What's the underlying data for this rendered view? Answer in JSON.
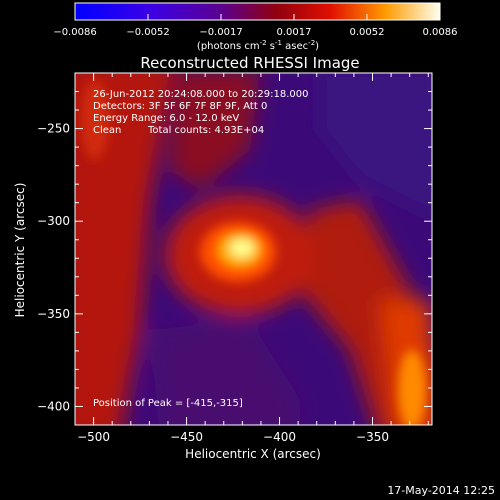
{
  "chart_data": {
    "type": "heatmap",
    "title": "Reconstructed RHESSI Image",
    "xlabel": "Heliocentric X (arcsec)",
    "ylabel": "Heliocentric Y (arcsec)",
    "xlim": [
      -510,
      -318
    ],
    "ylim": [
      -410,
      -220
    ],
    "x_ticks": [
      -500,
      -450,
      -400,
      -350
    ],
    "y_ticks": [
      -250,
      -300,
      -350,
      -400
    ],
    "colorbar": {
      "range": [
        -0.0086,
        0.0086
      ],
      "ticks": [
        "-0.0086",
        "-0.0052",
        "-0.0017",
        "0.0017",
        "0.0052",
        "0.0086"
      ],
      "unit_text": "(photons cm",
      "unit_sup1": "-2",
      "unit_mid1": " s",
      "unit_sup2": "-1",
      "unit_mid2": " asec",
      "unit_sup3": "-2",
      "unit_end": ")"
    },
    "annotations": {
      "time_range": "26-Jun-2012 20:24:08.000 to 20:29:18.000",
      "detectors": "Detectors: 3F 5F 6F 7F 8F 9F, Att 0",
      "energy": "Energy Range: 6.0 - 12.0 keV",
      "clean": "Clean",
      "counts": "Total counts: 4.93E+04",
      "peak": "Position of Peak = [-415,-315]"
    },
    "peak": {
      "x": -415,
      "y": -315
    }
  },
  "footer_date": "17-May-2014 12:25"
}
